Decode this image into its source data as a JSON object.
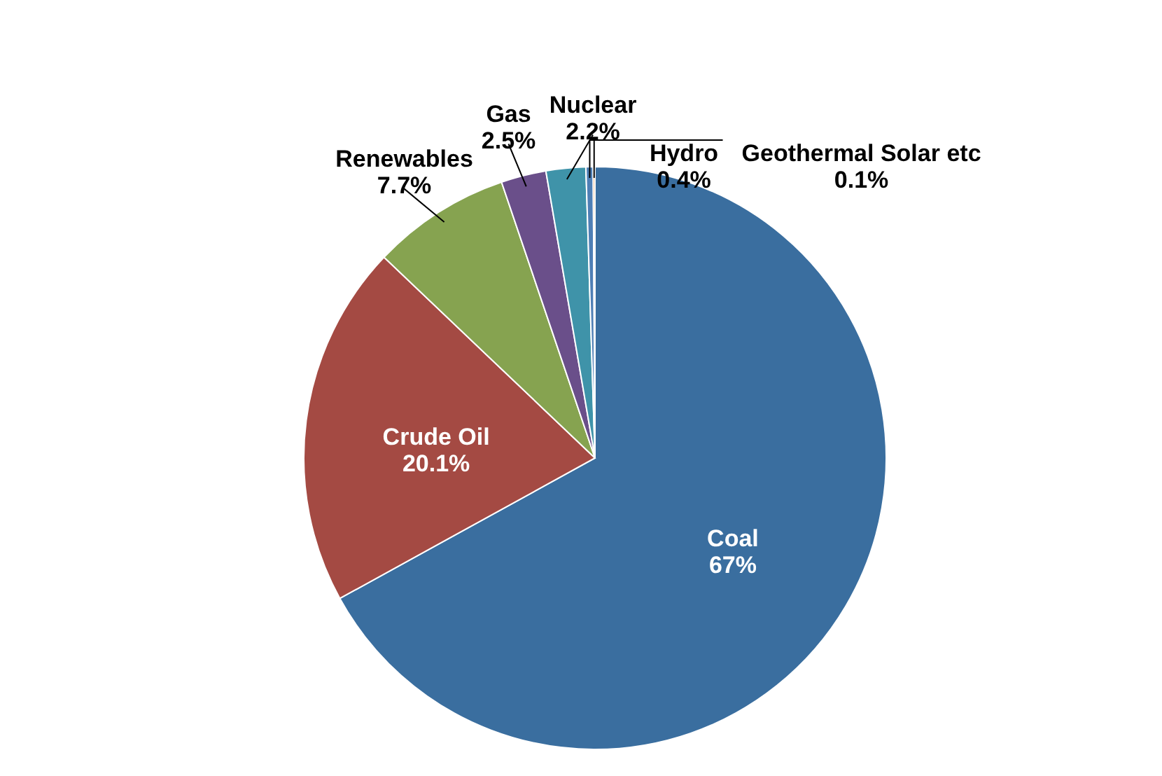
{
  "chart_data": {
    "type": "pie",
    "categories": [
      "Coal",
      "Crude Oil",
      "Renewables",
      "Gas",
      "Nuclear",
      "Hydro",
      "Geothermal Solar etc"
    ],
    "values": [
      67,
      20.1,
      7.7,
      2.5,
      2.2,
      0.4,
      0.1
    ],
    "value_labels": [
      "67%",
      "20.1%",
      "7.7%",
      "2.5%",
      "2.2%",
      "0.4%",
      "0.1%"
    ],
    "colors": [
      "#3a6e9f",
      "#a44a43",
      "#86a350",
      "#6a4f8a",
      "#3f93a9",
      "#4f7fb5",
      "#e07b2b"
    ]
  }
}
